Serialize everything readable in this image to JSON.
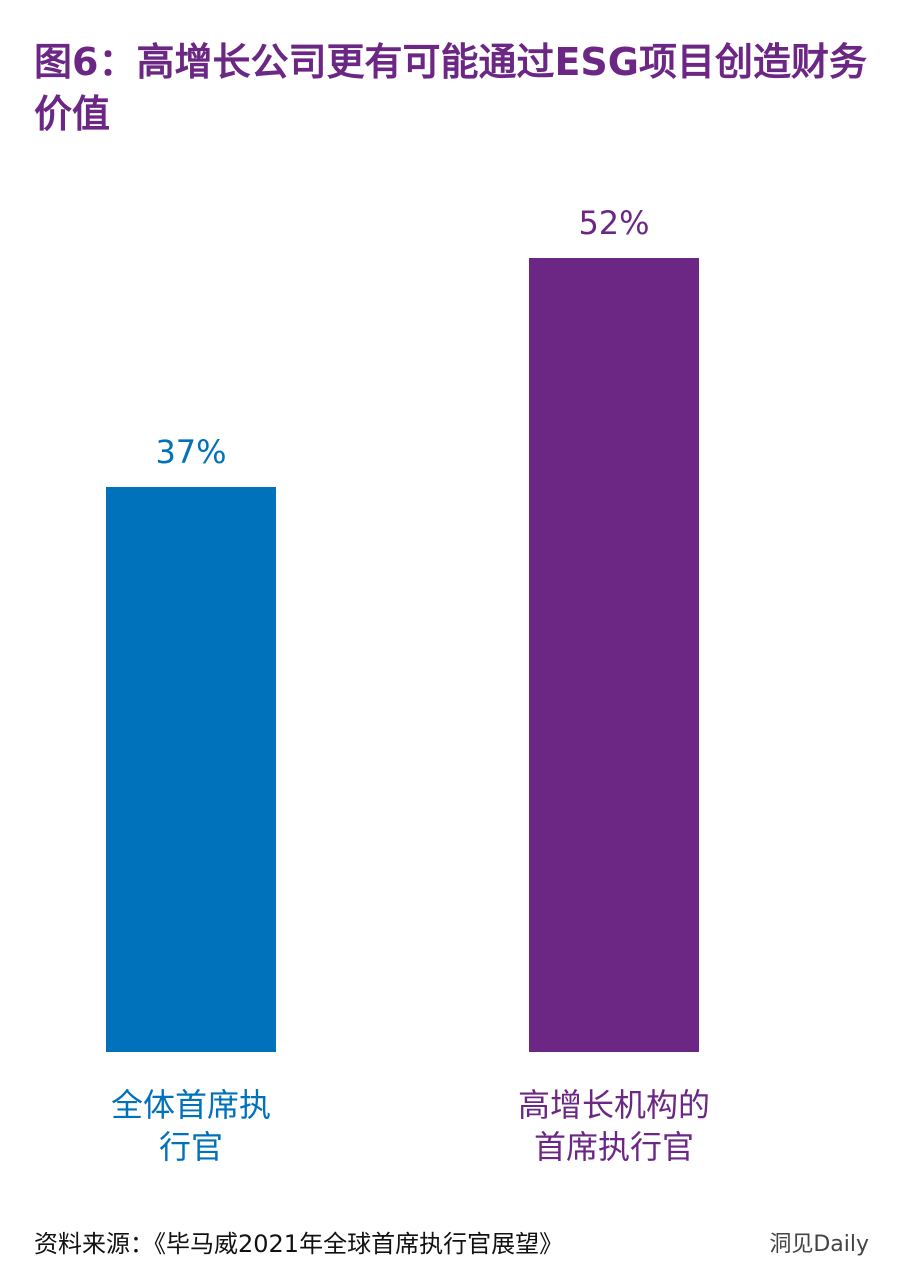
{
  "chart_data": {
    "type": "bar",
    "title": "图6：高增长公司更有可能通过ESG项目创造财务价值",
    "categories": [
      "全体首席执\n行官",
      "高增长机构的\n首席执行官"
    ],
    "values": [
      37,
      52
    ],
    "value_labels": [
      "37%",
      "52%"
    ],
    "colors": [
      "#0071bb",
      "#6c2785"
    ],
    "source": "资料来源：《毕马威2021年全球首席执行官展望》",
    "watermark": "洞见Daily"
  }
}
